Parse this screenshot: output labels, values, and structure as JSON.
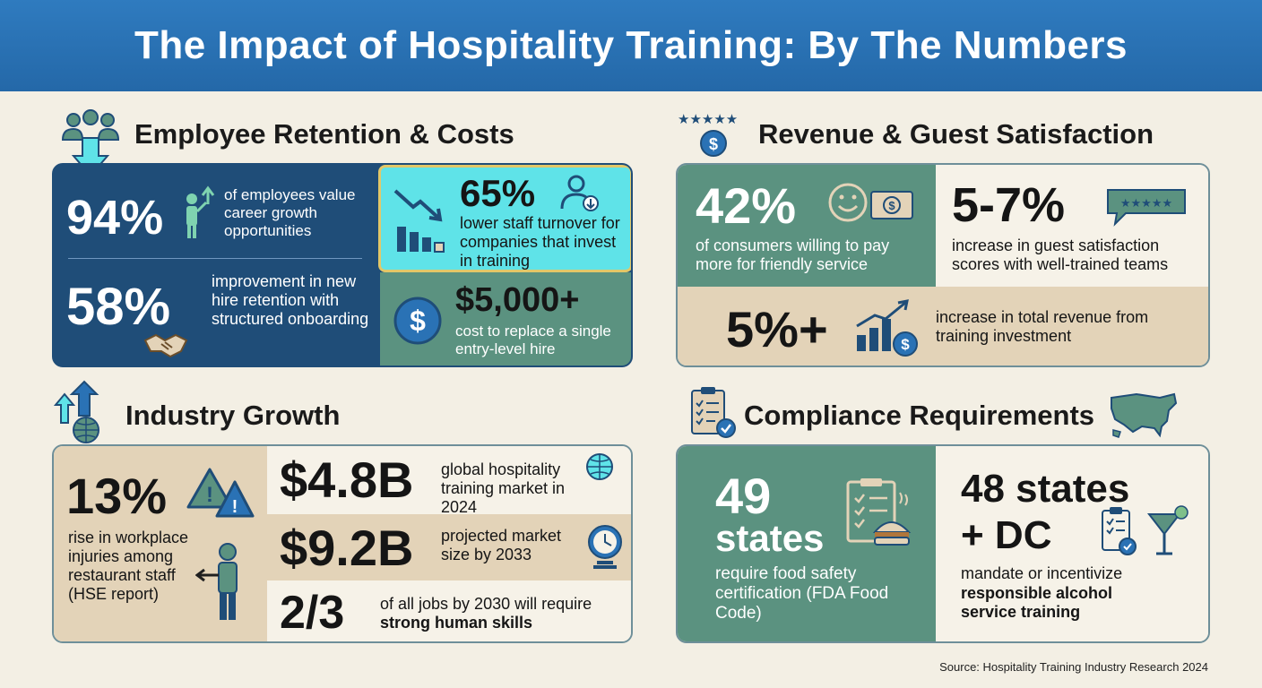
{
  "title": "The Impact of Hospitality Training: By The Numbers",
  "colors": {
    "header_blue": "#2a72b5",
    "navy": "#1f4d78",
    "teal_green": "#5b9280",
    "cyan": "#5fe3e8",
    "sand": "#e3d3b8",
    "cream": "#f6f2e8"
  },
  "sections": {
    "retention": {
      "title": "Employee Retention & Costs",
      "icon": "people-down-arrow-icon",
      "stats": [
        {
          "value": "94%",
          "text": "of employees value career growth opportunities",
          "icon": "growth-person-icon"
        },
        {
          "value": "65%",
          "text": "lower staff turnover for companies that invest in training",
          "icon": "declining-chart-icon"
        },
        {
          "value": "58%",
          "text": "improvement in new hire retention with structured onboarding",
          "icon": "handshake-icon"
        },
        {
          "value": "$5,000+",
          "text": "cost to replace a single entry-level hire",
          "icon": "dollar-coin-icon"
        }
      ]
    },
    "revenue": {
      "title": "Revenue & Guest Satisfaction",
      "icon": "five-star-dollar-icon",
      "stats": [
        {
          "value": "42%",
          "text": "of consumers willing to pay more for friendly service",
          "icon": "smile-money-icon"
        },
        {
          "value": "5-7%",
          "text": "increase in guest satisfaction scores with well-trained teams",
          "icon": "review-bubble-icon"
        },
        {
          "value": "5%+",
          "text": "increase in total revenue from training investment",
          "icon": "rising-chart-dollar-icon"
        }
      ]
    },
    "industry": {
      "title": "Industry Growth",
      "icon": "globe-arrows-icon",
      "stats": [
        {
          "value": "13%",
          "text": "rise in workplace injuries among restaurant staff (HSE report)",
          "icon": "warning-icon"
        },
        {
          "value": "$4.8B",
          "text": "global hospitality training market in 2024",
          "icon": "globe-icon"
        },
        {
          "value": "$9.2B",
          "text": "projected market size by 2033",
          "icon": "clock-icon"
        },
        {
          "value": "2/3",
          "text_a": "of all jobs by 2030 will require",
          "text_b": "strong human skills"
        }
      ]
    },
    "compliance": {
      "title": "Compliance Requirements",
      "icon": "checklist-icon",
      "stats": [
        {
          "value_a": "49",
          "value_b": "states",
          "text": "require food safety certification (FDA Food Code)",
          "icon": "food-checklist-icon"
        },
        {
          "value_a": "48 states",
          "value_b": "+ DC",
          "text_a": "mandate or incentivize",
          "text_b": "responsible alcohol service training",
          "icon": "cocktail-checklist-icon"
        }
      ]
    }
  },
  "source": "Source: Hospitality Training Industry Research 2024"
}
